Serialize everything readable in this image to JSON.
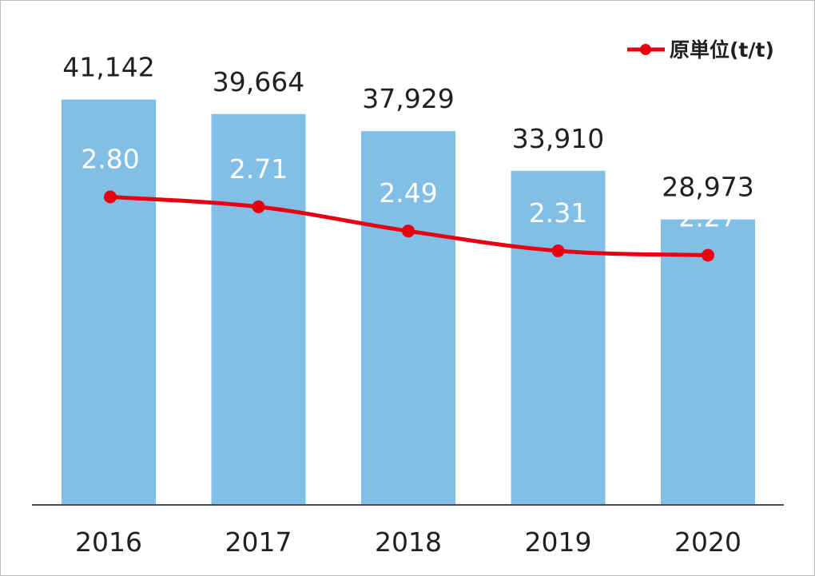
{
  "chart_data": {
    "type": "bar",
    "categories": [
      "2016",
      "2017",
      "2018",
      "2019",
      "2020"
    ],
    "series": [
      {
        "type": "bar",
        "values": [
          41142,
          39664,
          37929,
          33910,
          28973
        ],
        "labels": [
          "41,142",
          "39,664",
          "37,929",
          "33,910",
          "28,973"
        ],
        "color": "#82bfe7"
      },
      {
        "type": "line",
        "name": "原単位(t/t)",
        "values": [
          2.8,
          2.71,
          2.49,
          2.31,
          2.27
        ],
        "labels": [
          "2.80",
          "2.71",
          "2.49",
          "2.31",
          "2.27"
        ],
        "color": "#e60012"
      }
    ],
    "bar_ylim": [
      0,
      48000
    ],
    "line_ylim": [
      0,
      4.3
    ],
    "grid": false,
    "legend": {
      "position": "top-right",
      "entries": [
        "原単位(t/t)"
      ]
    },
    "title": "",
    "xlabel": "",
    "ylabel": ""
  }
}
